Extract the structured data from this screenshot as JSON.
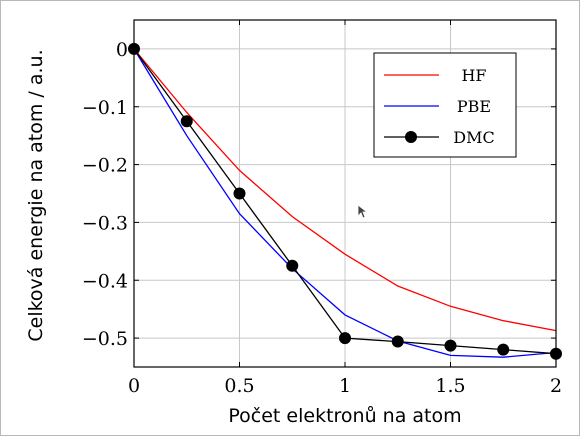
{
  "chart_data": {
    "type": "line",
    "xlabel": "Počet elektronů na atom",
    "ylabel": "Celková energie na atom / a.u.",
    "xlim": [
      0,
      2
    ],
    "ylim": [
      -0.55,
      0.05
    ],
    "xticks": [
      0,
      0.5,
      1,
      1.5,
      2
    ],
    "xtick_labels": [
      "0",
      "0.5",
      "1",
      "1.5",
      "2"
    ],
    "yticks": [
      0,
      -0.1,
      -0.2,
      -0.3,
      -0.4,
      -0.5
    ],
    "ytick_labels": [
      "0",
      "−0.1",
      "−0.2",
      "−0.3",
      "−0.4",
      "−0.5"
    ],
    "grid": true,
    "legend_position": "top-right",
    "series": [
      {
        "name": "HF",
        "color": "#ff0000",
        "marker": "none",
        "x": [
          0,
          0.25,
          0.5,
          0.75,
          1,
          1.25,
          1.5,
          1.75,
          2
        ],
        "y": [
          0,
          -0.11,
          -0.21,
          -0.29,
          -0.355,
          -0.41,
          -0.445,
          -0.47,
          -0.487
        ]
      },
      {
        "name": "PBE",
        "color": "#0000ff",
        "marker": "none",
        "x": [
          0,
          0.25,
          0.5,
          0.75,
          1,
          1.25,
          1.5,
          1.75,
          2
        ],
        "y": [
          0,
          -0.15,
          -0.285,
          -0.38,
          -0.46,
          -0.505,
          -0.53,
          -0.533,
          -0.525
        ]
      },
      {
        "name": "DMC",
        "color": "#000000",
        "marker": "circle",
        "x": [
          0,
          0.25,
          0.5,
          0.75,
          1,
          1.25,
          1.5,
          1.75,
          2
        ],
        "y": [
          0,
          -0.125,
          -0.25,
          -0.375,
          -0.5,
          -0.506,
          -0.513,
          -0.52,
          -0.527
        ]
      }
    ]
  }
}
